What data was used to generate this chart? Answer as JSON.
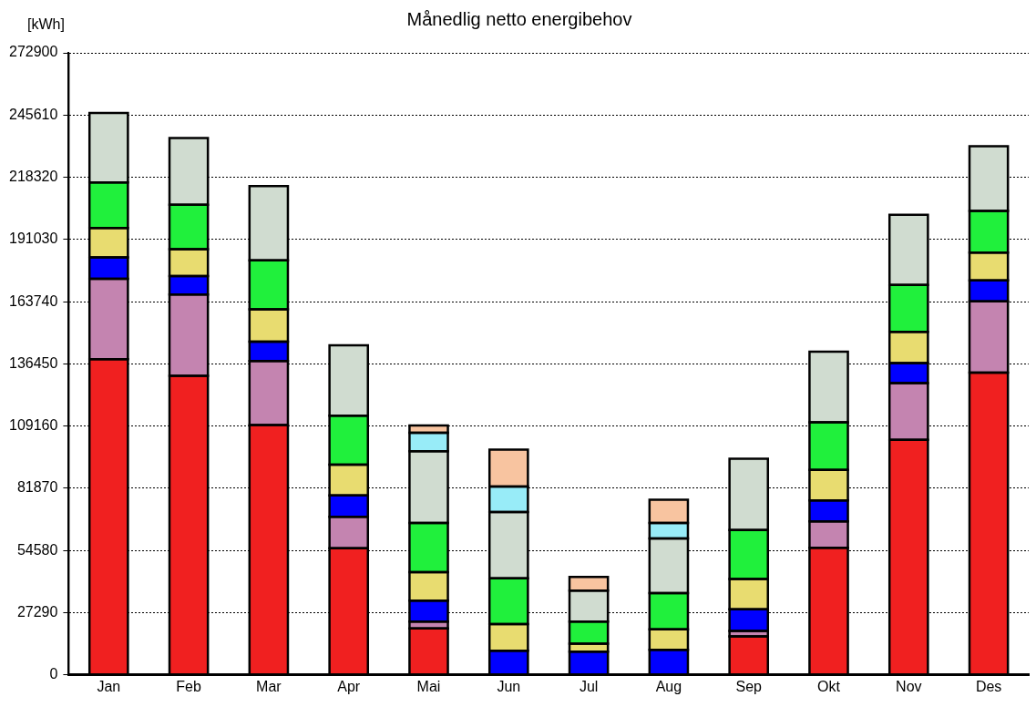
{
  "chart_data": {
    "type": "bar",
    "title": "Månedlig netto energibehov",
    "ylabel": "[kWh]",
    "stacked": true,
    "grid": "y",
    "legend": false,
    "categories": [
      "Jan",
      "Feb",
      "Mar",
      "Apr",
      "Mai",
      "Jun",
      "Jul",
      "Aug",
      "Sep",
      "Okt",
      "Nov",
      "Des"
    ],
    "ylim": [
      0,
      272900
    ],
    "yticks": [
      0,
      27290,
      54580,
      81870,
      109160,
      136450,
      163740,
      191030,
      218320,
      245610,
      272900
    ],
    "series": [
      {
        "color": "#f02020",
        "values": [
          138500,
          131200,
          109600,
          55600,
          20400,
          0,
          0,
          0,
          16900,
          55800,
          103100,
          132600
        ]
      },
      {
        "color": "#c484b0",
        "values": [
          35300,
          35700,
          28100,
          13800,
          3000,
          0,
          0,
          0,
          2400,
          11600,
          24900,
          31300
        ]
      },
      {
        "color": "#0000ff",
        "values": [
          9400,
          8100,
          8500,
          9400,
          9200,
          10600,
          10200,
          11000,
          9500,
          9200,
          8800,
          9200
        ]
      },
      {
        "color": "#e8dc70",
        "values": [
          12900,
          11800,
          14200,
          13400,
          12500,
          11700,
          3500,
          9000,
          13300,
          13300,
          13700,
          12200
        ]
      },
      {
        "color": "#20f03c",
        "values": [
          19900,
          19500,
          21500,
          21500,
          21600,
          20100,
          9700,
          15900,
          21500,
          20900,
          20600,
          18300
        ]
      },
      {
        "color": "#d0dcd0",
        "values": [
          30500,
          29200,
          32500,
          30900,
          31400,
          29100,
          13600,
          24000,
          31200,
          31000,
          30800,
          28300
        ]
      },
      {
        "color": "#98ecf8",
        "values": [
          0,
          0,
          0,
          0,
          8100,
          11200,
          0,
          6800,
          0,
          0,
          0,
          0
        ]
      },
      {
        "color": "#f8c4a0",
        "values": [
          0,
          0,
          0,
          0,
          3200,
          16100,
          6000,
          10200,
          0,
          0,
          0,
          0
        ]
      }
    ]
  }
}
